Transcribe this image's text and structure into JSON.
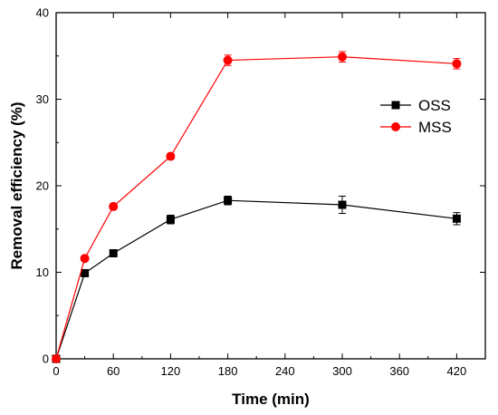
{
  "chart_data": {
    "type": "line",
    "title": "",
    "xlabel": "Time (min)",
    "ylabel": "Removal efficiency (%)",
    "xlim": [
      0,
      450
    ],
    "ylim": [
      0,
      40
    ],
    "xticks": [
      0,
      60,
      120,
      180,
      240,
      300,
      360,
      420
    ],
    "yticks": [
      0,
      10,
      20,
      30,
      40
    ],
    "x": [
      0,
      30,
      60,
      120,
      180,
      300,
      420
    ],
    "grid": false,
    "legend_position": "right",
    "series": [
      {
        "name": "OSS",
        "color": "#000000",
        "marker": "square",
        "values": [
          0,
          9.9,
          12.2,
          16.1,
          18.3,
          17.8,
          16.2
        ],
        "errors": [
          0,
          0.2,
          0.3,
          0.5,
          0.5,
          1.0,
          0.7
        ]
      },
      {
        "name": "MSS",
        "color": "#ff0000",
        "marker": "circle",
        "values": [
          0,
          11.6,
          17.6,
          23.4,
          34.5,
          34.9,
          34.1
        ],
        "errors": [
          0,
          0.2,
          0.3,
          0.3,
          0.6,
          0.6,
          0.6
        ]
      }
    ]
  }
}
